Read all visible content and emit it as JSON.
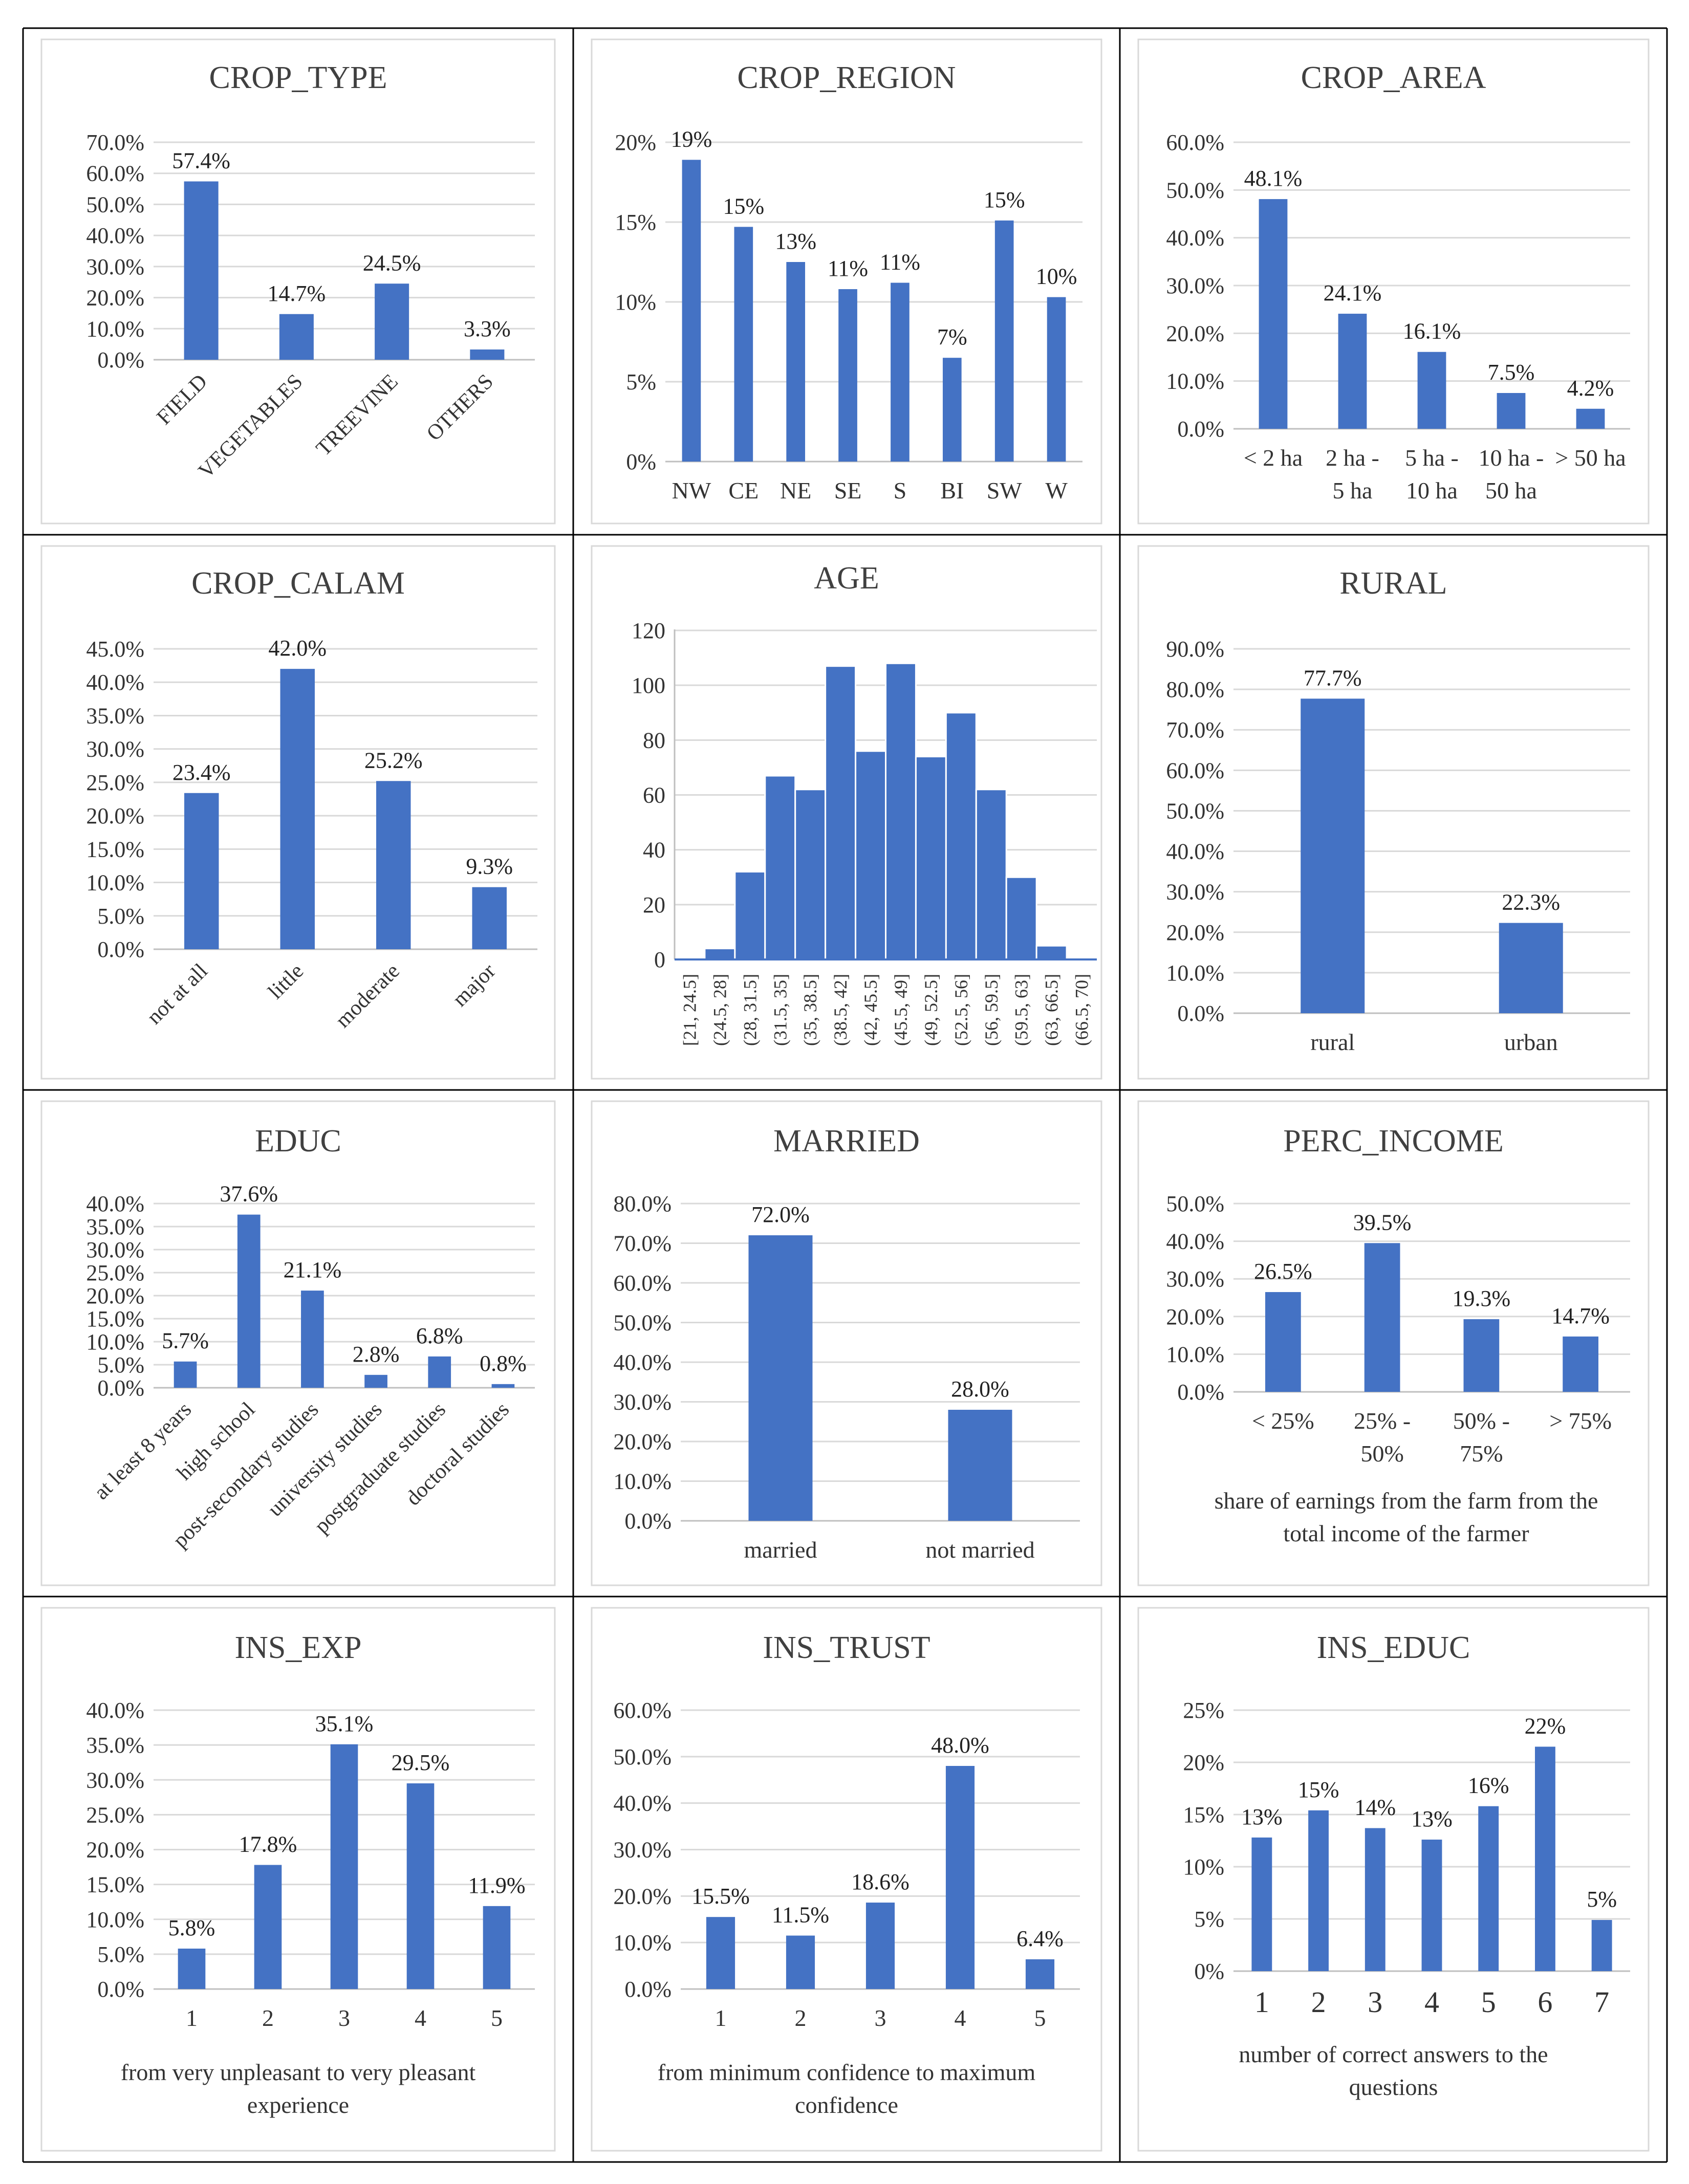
{
  "accent_color": "#4472C4",
  "chart_data": [
    {
      "title": "CROP_TYPE",
      "type": "bar",
      "categories": [
        "FIELD",
        "VEGETABLES",
        "TREEVINE",
        "OTHERS"
      ],
      "values": [
        57.4,
        14.7,
        24.5,
        3.3
      ],
      "labels": [
        "57.4%",
        "14.7%",
        "24.5%",
        "3.3%"
      ],
      "ticks": [
        "0.0%",
        "10.0%",
        "20.0%",
        "30.0%",
        "40.0%",
        "50.0%",
        "60.0%",
        "70.0%"
      ],
      "ylim": [
        0,
        70
      ],
      "xlabel": "",
      "rotate_x": true
    },
    {
      "title": "CROP_REGION",
      "type": "bar",
      "categories": [
        "NW",
        "CE",
        "NE",
        "SE",
        "S",
        "BI",
        "SW",
        "W"
      ],
      "values": [
        18.9,
        14.7,
        12.5,
        10.8,
        11.2,
        6.5,
        15.1,
        10.3
      ],
      "labels": [
        "19%",
        "15%",
        "13%",
        "11%",
        "11%",
        "7%",
        "15%",
        "10%"
      ],
      "ticks": [
        "0%",
        "5%",
        "10%",
        "15%",
        "20%"
      ],
      "ylim": [
        0,
        20
      ],
      "xlabel": "",
      "rotate_x": false
    },
    {
      "title": "CROP_AREA",
      "type": "bar",
      "categories": [
        "< 2 ha",
        "2 ha - 5 ha",
        "5 ha - 10 ha",
        "10 ha - 50 ha",
        "> 50 ha"
      ],
      "values": [
        48.1,
        24.1,
        16.1,
        7.5,
        4.2
      ],
      "labels": [
        "48.1%",
        "24.1%",
        "16.1%",
        "7.5%",
        "4.2%"
      ],
      "ticks": [
        "0.0%",
        "10.0%",
        "20.0%",
        "30.0%",
        "40.0%",
        "50.0%",
        "60.0%"
      ],
      "ylim": [
        0,
        60
      ],
      "xlabel": "",
      "rotate_x": false
    },
    {
      "title": "CROP_CALAM",
      "type": "bar",
      "categories": [
        "not at all",
        "little",
        "moderate",
        "major"
      ],
      "values": [
        23.4,
        42.0,
        25.2,
        9.3
      ],
      "labels": [
        "23.4%",
        "42.0%",
        "25.2%",
        "9.3%"
      ],
      "ticks": [
        "0.0%",
        "5.0%",
        "10.0%",
        "15.0%",
        "20.0%",
        "25.0%",
        "30.0%",
        "35.0%",
        "40.0%",
        "45.0%"
      ],
      "ylim": [
        0,
        45
      ],
      "xlabel": "",
      "rotate_x": true
    },
    {
      "title": "AGE",
      "type": "histogram",
      "categories": [
        "[21, 24.5]",
        "(24.5, 28]",
        "(28, 31.5]",
        "(31.5, 35]",
        "(35, 38.5]",
        "(38.5, 42]",
        "(42, 45.5]",
        "(45.5, 49]",
        "(49, 52.5]",
        "(52.5, 56]",
        "(56, 59.5]",
        "(59.5, 63]",
        "(63, 66.5]",
        "(66.5, 70]"
      ],
      "values": [
        0,
        4,
        32,
        67,
        62,
        107,
        76,
        108,
        74,
        90,
        62,
        30,
        5,
        0
      ],
      "ticks": [
        "0",
        "20",
        "40",
        "60",
        "80",
        "100",
        "120"
      ],
      "ylim": [
        0,
        120
      ],
      "xlabel": ""
    },
    {
      "title": "RURAL",
      "type": "bar",
      "categories": [
        "rural",
        "urban"
      ],
      "values": [
        77.7,
        22.3
      ],
      "labels": [
        "77.7%",
        "22.3%"
      ],
      "ticks": [
        "0.0%",
        "10.0%",
        "20.0%",
        "30.0%",
        "40.0%",
        "50.0%",
        "60.0%",
        "70.0%",
        "80.0%",
        "90.0%"
      ],
      "ylim": [
        0,
        90
      ],
      "xlabel": "",
      "rotate_x": false
    },
    {
      "title": "EDUC",
      "type": "bar",
      "categories": [
        "at least 8 years",
        "high school",
        "post-secondary studies",
        "university studies",
        "postgraduate studies",
        "doctoral studies"
      ],
      "values": [
        5.7,
        37.6,
        21.1,
        2.8,
        6.8,
        0.8
      ],
      "labels": [
        "5.7%",
        "37.6%",
        "21.1%",
        "2.8%",
        "6.8%",
        "0.8%"
      ],
      "ticks": [
        "0.0%",
        "5.0%",
        "10.0%",
        "15.0%",
        "20.0%",
        "25.0%",
        "30.0%",
        "35.0%",
        "40.0%"
      ],
      "ylim": [
        0,
        40
      ],
      "xlabel": "",
      "rotate_x": true
    },
    {
      "title": "MARRIED",
      "type": "bar",
      "categories": [
        "married",
        "not married"
      ],
      "values": [
        72.0,
        28.0
      ],
      "labels": [
        "72.0%",
        "28.0%"
      ],
      "ticks": [
        "0.0%",
        "10.0%",
        "20.0%",
        "30.0%",
        "40.0%",
        "50.0%",
        "60.0%",
        "70.0%",
        "80.0%"
      ],
      "ylim": [
        0,
        80
      ],
      "xlabel": "",
      "rotate_x": false
    },
    {
      "title": "PERC_INCOME",
      "type": "bar",
      "categories": [
        "< 25%",
        "25% - 50%",
        "50% - 75%",
        "> 75%"
      ],
      "values": [
        26.5,
        39.5,
        19.3,
        14.7
      ],
      "labels": [
        "26.5%",
        "39.5%",
        "19.3%",
        "14.7%"
      ],
      "ticks": [
        "0.0%",
        "10.0%",
        "20.0%",
        "30.0%",
        "40.0%",
        "50.0%"
      ],
      "ylim": [
        0,
        50
      ],
      "xlabel": "share of earnings from the farm from the total income of the farmer",
      "rotate_x": false
    },
    {
      "title": "INS_EXP",
      "type": "bar",
      "categories": [
        "1",
        "2",
        "3",
        "4",
        "5"
      ],
      "values": [
        5.8,
        17.8,
        35.1,
        29.5,
        11.9
      ],
      "labels": [
        "5.8%",
        "17.8%",
        "35.1%",
        "29.5%",
        "11.9%"
      ],
      "ticks": [
        "0.0%",
        "5.0%",
        "10.0%",
        "15.0%",
        "20.0%",
        "25.0%",
        "30.0%",
        "35.0%",
        "40.0%"
      ],
      "ylim": [
        0,
        40
      ],
      "xlabel": "from very unpleasant to very pleasant experience",
      "rotate_x": false
    },
    {
      "title": "INS_TRUST",
      "type": "bar",
      "categories": [
        "1",
        "2",
        "3",
        "4",
        "5"
      ],
      "values": [
        15.5,
        11.5,
        18.6,
        48.0,
        6.4
      ],
      "labels": [
        "15.5%",
        "11.5%",
        "18.6%",
        "48.0%",
        "6.4%"
      ],
      "ticks": [
        "0.0%",
        "10.0%",
        "20.0%",
        "30.0%",
        "40.0%",
        "50.0%",
        "60.0%"
      ],
      "ylim": [
        0,
        60
      ],
      "xlabel": "from minimum confidence to maximum confidence",
      "rotate_x": false
    },
    {
      "title": "INS_EDUC",
      "type": "bar",
      "categories": [
        "1",
        "2",
        "3",
        "4",
        "5",
        "6",
        "7"
      ],
      "values": [
        12.8,
        15.4,
        13.7,
        12.6,
        15.8,
        21.5,
        4.9
      ],
      "labels": [
        "13%",
        "15%",
        "14%",
        "13%",
        "16%",
        "22%",
        "5%"
      ],
      "ticks": [
        "0%",
        "5%",
        "10%",
        "15%",
        "20%",
        "25%"
      ],
      "ylim": [
        0,
        25
      ],
      "xlabel": "number of correct answers to the questions",
      "rotate_x": false
    }
  ]
}
